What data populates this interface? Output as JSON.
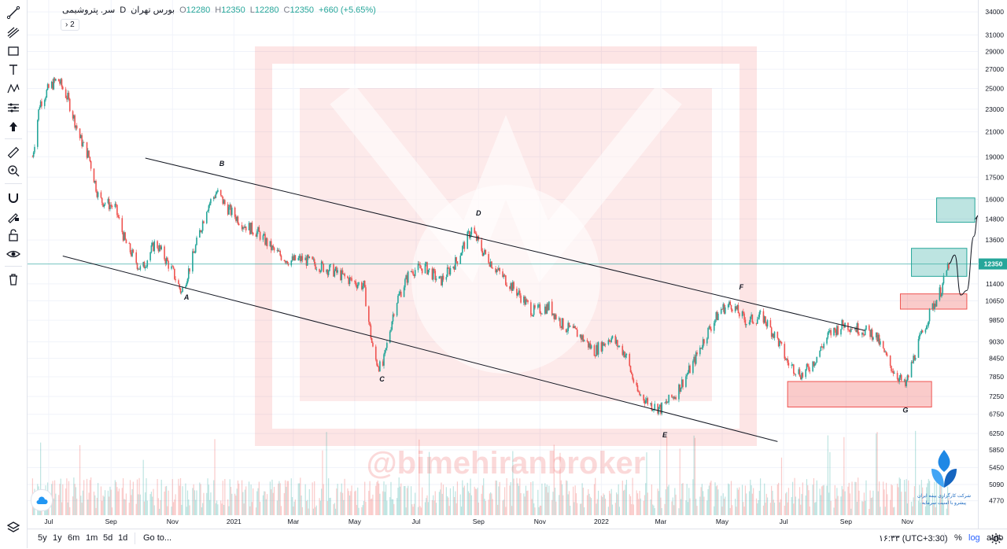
{
  "legend": {
    "symbol": "سر. پتروشیمی",
    "interval": "D",
    "exchange": "بورس تهران",
    "open_label": "O",
    "open": "12280",
    "high_label": "H",
    "high": "12350",
    "low_label": "L",
    "low": "12280",
    "close_label": "C",
    "close": "12350",
    "change": "+660 (+5.65%)"
  },
  "collapse_label": "2",
  "current_price_label": "12350",
  "watermark": "@bimehiranbroker",
  "brand_caption_line1": "شرکت کارگزاری بیمه ایران",
  "brand_caption_line2": "پیشرو با امنیت سرمایه",
  "timeframes": [
    "5y",
    "1y",
    "6m",
    "1m",
    "5d",
    "1d"
  ],
  "goto_label": "Go to...",
  "clock": "۱۶:۳۳ (UTC+3:30)",
  "percent_label": "%",
  "log_label": "log",
  "auto_label": "auto",
  "colors": {
    "up": "#26a69a",
    "down": "#ef5350",
    "line": "#131722",
    "accent": "#2962ff"
  },
  "chart_data": {
    "type": "candlestick",
    "y_scale": "log",
    "y_ticks": [
      4770,
      5090,
      5450,
      5850,
      6250,
      6750,
      7250,
      7850,
      8450,
      9030,
      9850,
      10650,
      11400,
      12350,
      13600,
      14800,
      16000,
      17500,
      19000,
      21000,
      23000,
      25000,
      27000,
      29000,
      31000,
      34000
    ],
    "y_tick_labels": [
      "4770",
      "5090",
      "5450",
      "5850",
      "6250",
      "6750",
      "7250",
      "7850",
      "8450",
      "9030",
      "9850",
      "10650",
      "11400",
      "12350",
      "13600",
      "14800",
      "16000",
      "17500",
      "19000",
      "21000",
      "23000",
      "25000",
      "27000",
      "29000",
      "31000",
      "34000"
    ],
    "x_tick_labels": [
      "Jul",
      "Sep",
      "Nov",
      "2021",
      "Mar",
      "May",
      "Jul",
      "Sep",
      "Nov",
      "2022",
      "Mar",
      "May",
      "Jul",
      "Sep",
      "Nov"
    ],
    "x_tick_dates": [
      "2020-07-01",
      "2020-09-01",
      "2020-11-01",
      "2021-01-01",
      "2021-03-01",
      "2021-05-01",
      "2021-07-01",
      "2021-09-01",
      "2021-11-01",
      "2022-01-01",
      "2022-03-01",
      "2022-05-01",
      "2022-07-01",
      "2022-09-01",
      "2022-11-01"
    ],
    "x_range": [
      "2020-06-10",
      "2023-01-10"
    ],
    "y_range": [
      4500,
      35000
    ],
    "price_path": [
      [
        "2020-06-15",
        19000
      ],
      [
        "2020-06-22",
        23500
      ],
      [
        "2020-07-01",
        25000
      ],
      [
        "2020-07-10",
        26000
      ],
      [
        "2020-07-20",
        24000
      ],
      [
        "2020-08-01",
        20500
      ],
      [
        "2020-08-10",
        19000
      ],
      [
        "2020-08-20",
        16000
      ],
      [
        "2020-09-05",
        15500
      ],
      [
        "2020-09-15",
        13500
      ],
      [
        "2020-10-01",
        12000
      ],
      [
        "2020-10-15",
        13500
      ],
      [
        "2020-11-01",
        12000
      ],
      [
        "2020-11-10",
        11000
      ],
      [
        "2020-11-20",
        12500
      ],
      [
        "2020-12-05",
        15500
      ],
      [
        "2020-12-15",
        16500
      ],
      [
        "2020-12-25",
        15500
      ],
      [
        "2021-01-10",
        14500
      ],
      [
        "2021-01-25",
        14000
      ],
      [
        "2021-02-10",
        13000
      ],
      [
        "2021-02-25",
        12500
      ],
      [
        "2021-03-10",
        12600
      ],
      [
        "2021-03-25",
        12300
      ],
      [
        "2021-04-10",
        12000
      ],
      [
        "2021-04-25",
        11600
      ],
      [
        "2021-05-10",
        11300
      ],
      [
        "2021-05-20",
        8500
      ],
      [
        "2021-05-28",
        8050
      ],
      [
        "2021-06-10",
        10500
      ],
      [
        "2021-06-25",
        12000
      ],
      [
        "2021-07-10",
        12200
      ],
      [
        "2021-07-25",
        11500
      ],
      [
        "2021-08-10",
        12500
      ],
      [
        "2021-08-25",
        14200
      ],
      [
        "2021-09-05",
        13000
      ],
      [
        "2021-09-20",
        12000
      ],
      [
        "2021-10-10",
        11000
      ],
      [
        "2021-10-25",
        10200
      ],
      [
        "2021-11-10",
        10400
      ],
      [
        "2021-11-25",
        9600
      ],
      [
        "2021-12-10",
        9300
      ],
      [
        "2021-12-25",
        8700
      ],
      [
        "2022-01-10",
        9200
      ],
      [
        "2022-01-25",
        8600
      ],
      [
        "2022-02-05",
        7400
      ],
      [
        "2022-02-20",
        7000
      ],
      [
        "2022-03-01",
        6900
      ],
      [
        "2022-03-15",
        7300
      ],
      [
        "2022-04-01",
        8200
      ],
      [
        "2022-04-15",
        9300
      ],
      [
        "2022-04-30",
        10300
      ],
      [
        "2022-05-10",
        10500
      ],
      [
        "2022-05-25",
        9800
      ],
      [
        "2022-06-10",
        10000
      ],
      [
        "2022-06-25",
        9100
      ],
      [
        "2022-07-05",
        8300
      ],
      [
        "2022-07-20",
        7900
      ],
      [
        "2022-08-01",
        8400
      ],
      [
        "2022-08-15",
        9300
      ],
      [
        "2022-08-30",
        9700
      ],
      [
        "2022-09-15",
        9500
      ],
      [
        "2022-09-30",
        9300
      ],
      [
        "2022-10-15",
        8200
      ],
      [
        "2022-10-30",
        7550
      ],
      [
        "2022-11-10",
        8800
      ],
      [
        "2022-11-25",
        10300
      ],
      [
        "2022-12-05",
        11200
      ],
      [
        "2022-12-12",
        12350
      ]
    ],
    "point_labels": [
      {
        "label": "A",
        "date": "2020-11-15",
        "price": 10700
      },
      {
        "label": "B",
        "date": "2020-12-20",
        "price": 18300
      },
      {
        "label": "C",
        "date": "2021-05-28",
        "price": 7700
      },
      {
        "label": "D",
        "date": "2021-09-01",
        "price": 15000
      },
      {
        "label": "E",
        "date": "2022-03-05",
        "price": 6150
      },
      {
        "label": "F",
        "date": "2022-05-20",
        "price": 11150
      },
      {
        "label": "G",
        "date": "2022-10-30",
        "price": 6800
      }
    ],
    "trend_lines": [
      {
        "from": [
          "2020-10-05",
          18900
        ],
        "to": [
          "2022-09-20",
          9450
        ]
      },
      {
        "from": [
          "2020-07-15",
          12750
        ],
        "to": [
          "2022-06-25",
          6050
        ]
      }
    ],
    "zones": [
      {
        "from": [
          "2022-07-05",
          7700
        ],
        "to": [
          "2022-11-25",
          6950
        ],
        "color": "#ef5350"
      },
      {
        "from": [
          "2022-10-25",
          10950
        ],
        "to": [
          "2022-12-30",
          10300
        ],
        "color": "#ef5350"
      },
      {
        "from": [
          "2022-11-05",
          13150
        ],
        "to": [
          "2022-12-30",
          11750
        ],
        "color": "#26a69a"
      },
      {
        "from": [
          "2022-11-30",
          16100
        ],
        "to": [
          "2023-01-07",
          14600
        ],
        "color": "#26a69a"
      }
    ],
    "projection": [
      [
        "2022-12-12",
        12350
      ],
      [
        "2022-12-18",
        12800
      ],
      [
        "2022-12-24",
        10900
      ],
      [
        "2022-12-30",
        11100
      ],
      [
        "2023-01-06",
        13800
      ],
      [
        "2023-01-10",
        15000
      ]
    ]
  }
}
